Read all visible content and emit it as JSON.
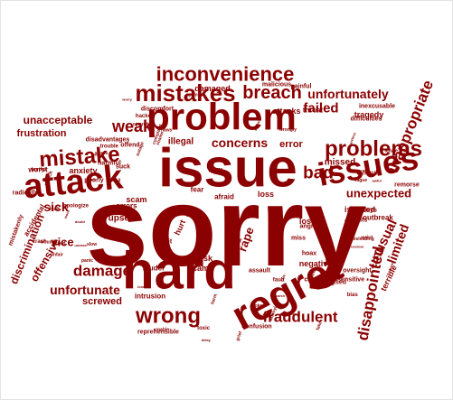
{
  "word_cloud": {
    "color": "#8b0000",
    "words": [
      {
        "text": "sorry"
      },
      {
        "text": "issue"
      },
      {
        "text": "hard"
      },
      {
        "text": "problem"
      },
      {
        "text": "regret"
      },
      {
        "text": "issues"
      },
      {
        "text": "attack"
      },
      {
        "text": "mistakes"
      },
      {
        "text": "inconvenience"
      },
      {
        "text": "problems"
      },
      {
        "text": "mistake"
      },
      {
        "text": "breach"
      },
      {
        "text": "wrong"
      },
      {
        "text": "fraudulent"
      },
      {
        "text": "disappointed"
      },
      {
        "text": "inappropriate"
      },
      {
        "text": "unfortunately"
      },
      {
        "text": "unexpected"
      },
      {
        "text": "damage"
      },
      {
        "text": "unfortunate"
      },
      {
        "text": "discrimination"
      },
      {
        "text": "unusual"
      },
      {
        "text": "limited"
      },
      {
        "text": "bad"
      },
      {
        "text": "weak"
      },
      {
        "text": "failed"
      },
      {
        "text": "concerns"
      },
      {
        "text": "unacceptable"
      },
      {
        "text": "frustration"
      },
      {
        "text": "sick"
      },
      {
        "text": "vice"
      },
      {
        "text": "offensive"
      },
      {
        "text": "screwed"
      },
      {
        "text": "rape"
      },
      {
        "text": "missed"
      },
      {
        "text": "error"
      },
      {
        "text": "anxiety"
      },
      {
        "text": "crisis"
      },
      {
        "text": "hurt"
      },
      {
        "text": "risk"
      },
      {
        "text": "scams"
      },
      {
        "text": "bug"
      },
      {
        "text": "scam"
      },
      {
        "text": "upset"
      },
      {
        "text": "isolated"
      },
      {
        "text": "negative"
      },
      {
        "text": "lost"
      },
      {
        "text": "loss"
      },
      {
        "text": "terrible"
      },
      {
        "text": "tragedy"
      },
      {
        "text": "attacks"
      },
      {
        "text": "illegal"
      },
      {
        "text": "damaged"
      },
      {
        "text": "worst"
      },
      {
        "text": "threat"
      },
      {
        "text": "outbreak"
      },
      {
        "text": "confusion"
      },
      {
        "text": "assault"
      },
      {
        "text": "mistakenly"
      },
      {
        "text": "accidental"
      },
      {
        "text": "radically"
      },
      {
        "text": "louder"
      },
      {
        "text": "intrusion"
      },
      {
        "text": "reprehensible"
      },
      {
        "text": "afraid"
      },
      {
        "text": "flaw"
      },
      {
        "text": "fear"
      },
      {
        "text": "errors"
      },
      {
        "text": "split"
      },
      {
        "text": "angry"
      },
      {
        "text": "concern"
      },
      {
        "text": "delays"
      },
      {
        "text": "insults"
      },
      {
        "text": "poor"
      },
      {
        "text": "dark"
      },
      {
        "text": "harmful"
      },
      {
        "text": "offend"
      },
      {
        "text": "poorly"
      },
      {
        "text": "remorse"
      },
      {
        "text": "oversight"
      },
      {
        "text": "insensitive"
      },
      {
        "text": "difficulties"
      },
      {
        "text": "disadvantages"
      },
      {
        "text": "discomfort"
      },
      {
        "text": "malicious"
      },
      {
        "text": "painful"
      },
      {
        "text": "inexcusable"
      },
      {
        "text": "difficult"
      },
      {
        "text": "hoax"
      },
      {
        "text": "miss"
      },
      {
        "text": "messed"
      },
      {
        "text": "suck"
      },
      {
        "text": "mock"
      },
      {
        "text": "unease"
      },
      {
        "text": "stress"
      },
      {
        "text": "shame"
      },
      {
        "text": "flaws"
      },
      {
        "text": "fault"
      },
      {
        "text": "cheat"
      },
      {
        "text": "panic"
      },
      {
        "text": "fake"
      },
      {
        "text": "sad"
      },
      {
        "text": "lose"
      },
      {
        "text": "grief"
      },
      {
        "text": "trouble"
      },
      {
        "text": "victim"
      },
      {
        "text": "weird"
      },
      {
        "text": "vague"
      },
      {
        "text": "unfair"
      },
      {
        "text": "harm"
      },
      {
        "text": "toxic"
      },
      {
        "text": "abuse"
      },
      {
        "text": "fail"
      },
      {
        "text": "broken"
      },
      {
        "text": "delay"
      },
      {
        "text": "warn"
      },
      {
        "text": "wound"
      },
      {
        "text": "bias"
      },
      {
        "text": "glitch"
      },
      {
        "text": "worry"
      },
      {
        "text": "hate"
      },
      {
        "text": "shock"
      },
      {
        "text": "chaos"
      },
      {
        "text": "unclear"
      },
      {
        "text": "setback"
      },
      {
        "text": "outage"
      },
      {
        "text": "doubt"
      },
      {
        "text": "fraud"
      },
      {
        "text": "spam"
      },
      {
        "text": "blame"
      },
      {
        "text": "harsh"
      },
      {
        "text": "slow"
      },
      {
        "text": "denied"
      },
      {
        "text": "hacked"
      },
      {
        "text": "crash"
      },
      {
        "text": "leak"
      },
      {
        "text": "hurtful"
      },
      {
        "text": "unhappy"
      },
      {
        "text": "regrets"
      },
      {
        "text": "apologize"
      },
      {
        "text": "misleading"
      },
      {
        "text": "complaint"
      },
      {
        "text": "annoying"
      },
      {
        "text": "awful"
      },
      {
        "text": "failure"
      },
      {
        "text": "unable"
      },
      {
        "text": "wrongly"
      },
      {
        "text": "careless"
      }
    ]
  }
}
